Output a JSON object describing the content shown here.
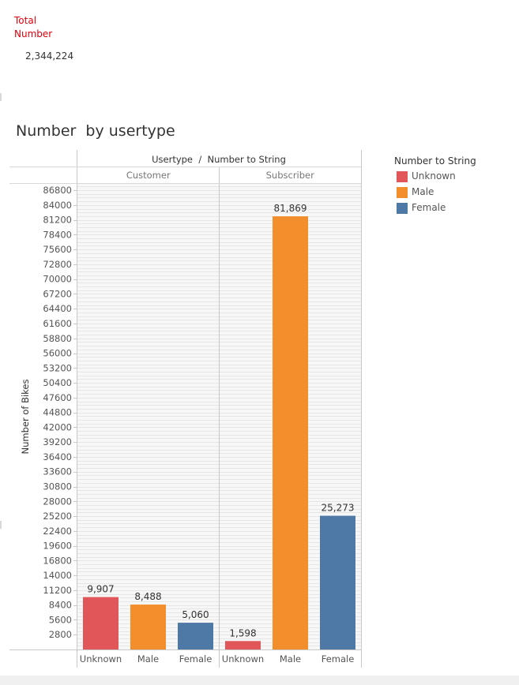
{
  "kpi": {
    "label": "Total Number",
    "value": "2,344,224"
  },
  "chart_title": "Number  by usertype",
  "legend": {
    "title": "Number to String",
    "items": [
      {
        "label": "Unknown",
        "color": "#e15759"
      },
      {
        "label": "Male",
        "color": "#f28e2b"
      },
      {
        "label": "Female",
        "color": "#4e79a7"
      }
    ]
  },
  "chart_data": {
    "type": "bar",
    "title": "Number  by usertype",
    "column_header": "Usertype  /  Number to String",
    "ylabel": "Number of Bikes",
    "ylim": [
      0,
      88000
    ],
    "yticks": [
      2800,
      5600,
      8400,
      11200,
      14000,
      16800,
      19600,
      22400,
      25200,
      28000,
      30800,
      33600,
      36400,
      39200,
      42000,
      44800,
      47600,
      50400,
      53200,
      56000,
      58800,
      61600,
      64400,
      67200,
      70000,
      72800,
      75600,
      78400,
      81200,
      84000,
      86800
    ],
    "grid": true,
    "legend_position": "right",
    "groups": [
      {
        "name": "Customer",
        "categories": [
          "Unknown",
          "Male",
          "Female"
        ],
        "values": [
          9907,
          8488,
          5060
        ],
        "labels": [
          "9,907",
          "8,488",
          "5,060"
        ]
      },
      {
        "name": "Subscriber",
        "categories": [
          "Unknown",
          "Male",
          "Female"
        ],
        "values": [
          1598,
          81869,
          25273
        ],
        "labels": [
          "1,598",
          "81,869",
          "25,273"
        ]
      }
    ],
    "colors": {
      "Unknown": "#e15759",
      "Male": "#f28e2b",
      "Female": "#4e79a7"
    }
  }
}
